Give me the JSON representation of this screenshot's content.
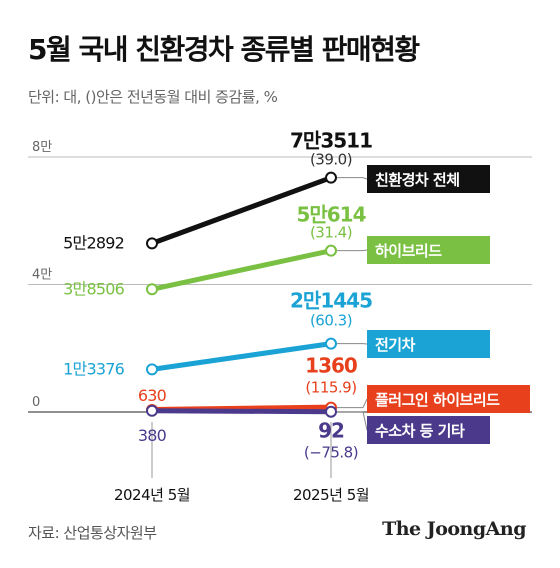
{
  "title": "5월 국내 친환경차 종류별 판매현황",
  "subtitle": "단위: 대, ()안은 전년동월 대비 증감률, %",
  "source": "자료: 산업통상자원부",
  "brand": "The JoongAng",
  "chart_data": {
    "type": "line",
    "categories": [
      "2024년 5월",
      "2025년 5월"
    ],
    "y_ticks": [
      {
        "value": 80000,
        "label": "8만"
      },
      {
        "value": 40000,
        "label": "4만"
      },
      {
        "value": 0,
        "label": "0"
      }
    ],
    "ylim": [
      0,
      80000
    ],
    "grid": true,
    "series": [
      {
        "name": "친환경차 전체",
        "color": "#111111",
        "values": [
          52892,
          73511
        ],
        "labels": [
          "5만2892",
          "7만3511"
        ],
        "change": "(39.0)"
      },
      {
        "name": "하이브리드",
        "color": "#7ac143",
        "values": [
          38506,
          50614
        ],
        "labels": [
          "3만8506",
          "5만614"
        ],
        "change": "(31.4)"
      },
      {
        "name": "전기차",
        "color": "#1aa3d4",
        "values": [
          13376,
          21445
        ],
        "labels": [
          "1만3376",
          "2만1445"
        ],
        "change": "(60.3)"
      },
      {
        "name": "플러그인 하이브리드",
        "color": "#e8401c",
        "values": [
          630,
          1360
        ],
        "labels": [
          "630",
          "1360"
        ],
        "change": "(115.9)"
      },
      {
        "name": "수소차 등 기타",
        "color": "#4b3a8c",
        "values": [
          380,
          92
        ],
        "labels": [
          "380",
          "92"
        ],
        "change": "(−75.8)"
      }
    ]
  }
}
